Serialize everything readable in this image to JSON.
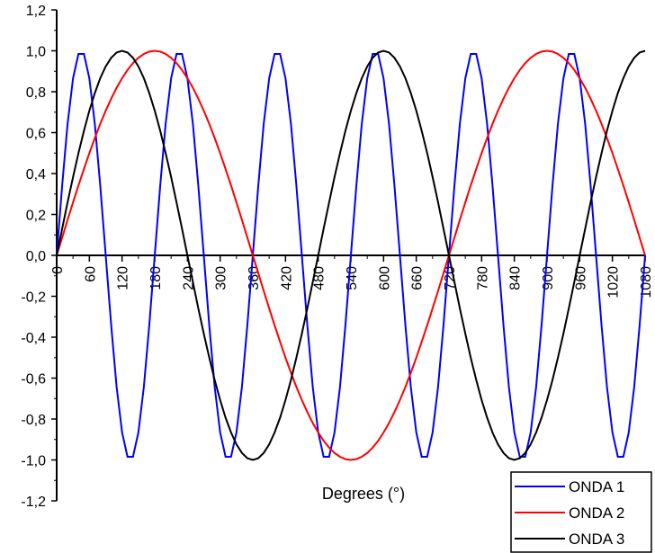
{
  "chart_data": {
    "type": "line",
    "title": "",
    "xlabel": "Degrees (°)",
    "ylabel": "",
    "xlim": [
      0,
      1080
    ],
    "ylim": [
      -1.2,
      1.2
    ],
    "x_ticks": [
      0,
      60,
      120,
      180,
      240,
      300,
      360,
      420,
      480,
      540,
      600,
      660,
      720,
      780,
      840,
      900,
      960,
      1020,
      1080
    ],
    "y_ticks": [
      -1.2,
      -1.0,
      -0.8,
      -0.6,
      -0.4,
      -0.2,
      0.0,
      0.2,
      0.4,
      0.6,
      0.8,
      1.0,
      1.2
    ],
    "y_tick_labels": [
      "-1,2",
      "-1,0",
      "-0,8",
      "-0,6",
      "-0,4",
      "-0,2",
      "0,0",
      "0,2",
      "0,4",
      "0,6",
      "0,8",
      "1,0",
      "1,2"
    ],
    "grid": false,
    "legend_position": "bottom-right",
    "series": [
      {
        "name": "ONDA 1",
        "color": "#0000ff",
        "function": "sin(x*2)",
        "x_step": 10
      },
      {
        "name": "ONDA 2",
        "color": "#ff0000",
        "function": "sin(x/2)",
        "x_step": 10
      },
      {
        "name": "ONDA 3",
        "color": "#000000",
        "function": "sin(x*3/4)",
        "x_step": 10
      }
    ]
  }
}
